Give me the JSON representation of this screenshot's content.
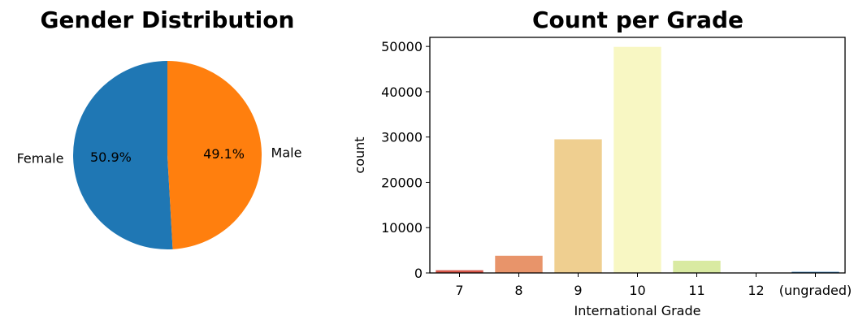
{
  "chart_data": [
    {
      "type": "pie",
      "title": "Gender Distribution",
      "labels": [
        "Female",
        "Male"
      ],
      "values": [
        50.9,
        49.1
      ],
      "value_labels": [
        "50.9%",
        "49.1%"
      ],
      "colors": [
        "#1f77b4",
        "#ff7f0e"
      ]
    },
    {
      "type": "bar",
      "title": "Count per Grade",
      "xlabel": "International Grade",
      "ylabel": "count",
      "categories": [
        "7",
        "8",
        "9",
        "10",
        "11",
        "12",
        "(ungraded)"
      ],
      "values": [
        600,
        3800,
        29500,
        49900,
        2700,
        60,
        250
      ],
      "ylim": [
        0,
        52000
      ],
      "yticks": [
        0,
        10000,
        20000,
        30000,
        40000,
        50000
      ],
      "colors": [
        "#d7574a",
        "#e8946a",
        "#efcf90",
        "#f8f7c3",
        "#d9eaa2",
        "#88c7a5",
        "#3a7fb8"
      ],
      "grid": false
    }
  ]
}
